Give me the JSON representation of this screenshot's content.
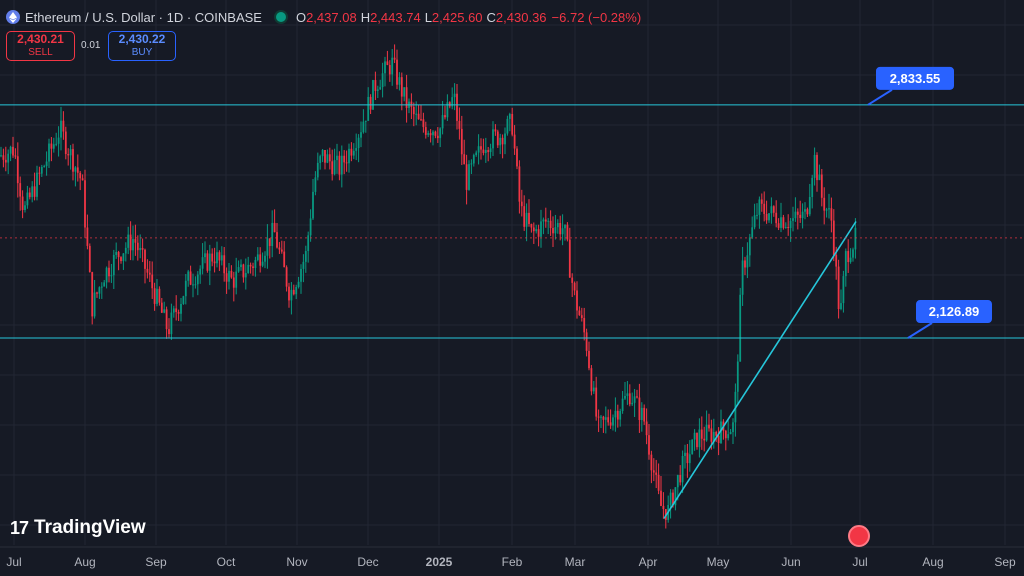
{
  "header": {
    "symbol": "Ethereum / U.S. Dollar · 1D · COINBASE",
    "ohlc": {
      "o_label": "O",
      "o": "2,437.08",
      "h_label": "H",
      "h": "2,443.74",
      "l_label": "L",
      "l": "2,425.60",
      "c_label": "C",
      "c": "2,430.36",
      "change": "−6.72 (−0.28%)"
    }
  },
  "trade": {
    "sell_price": "2,430.21",
    "sell_label": "SELL",
    "spread": "0.01",
    "buy_price": "2,430.22",
    "buy_label": "BUY"
  },
  "brand": "TradingView",
  "colors": {
    "up": "#089981",
    "down": "#f23645",
    "level_line": "#26c6da",
    "label_bg": "#2962ff",
    "background": "#161a25"
  },
  "chart_data": {
    "type": "candlestick",
    "x_ticks": [
      "Jul",
      "Aug",
      "Sep",
      "Oct",
      "Nov",
      "Dec",
      "2025",
      "Feb",
      "Mar",
      "Apr",
      "May",
      "Jun",
      "Jul",
      "Aug",
      "Sep"
    ],
    "horizontal_levels": [
      {
        "value": "2,833.55"
      },
      {
        "value": "2,126.89"
      }
    ],
    "price_path": [
      [
        0,
        2680
      ],
      [
        14,
        2700
      ],
      [
        24,
        2510
      ],
      [
        44,
        2650
      ],
      [
        60,
        2760
      ],
      [
        82,
        2600
      ],
      [
        92,
        2220
      ],
      [
        104,
        2320
      ],
      [
        118,
        2380
      ],
      [
        134,
        2430
      ],
      [
        150,
        2300
      ],
      [
        168,
        2150
      ],
      [
        188,
        2300
      ],
      [
        214,
        2380
      ],
      [
        232,
        2300
      ],
      [
        256,
        2360
      ],
      [
        274,
        2450
      ],
      [
        290,
        2260
      ],
      [
        306,
        2380
      ],
      [
        314,
        2600
      ],
      [
        322,
        2680
      ],
      [
        340,
        2640
      ],
      [
        360,
        2760
      ],
      [
        376,
        2900
      ],
      [
        392,
        2960
      ],
      [
        406,
        2840
      ],
      [
        420,
        2770
      ],
      [
        440,
        2760
      ],
      [
        454,
        2860
      ],
      [
        466,
        2600
      ],
      [
        484,
        2720
      ],
      [
        500,
        2740
      ],
      [
        512,
        2780
      ],
      [
        520,
        2520
      ],
      [
        532,
        2440
      ],
      [
        546,
        2480
      ],
      [
        564,
        2460
      ],
      [
        574,
        2260
      ],
      [
        586,
        2120
      ],
      [
        598,
        1850
      ],
      [
        614,
        1900
      ],
      [
        630,
        1960
      ],
      [
        644,
        1880
      ],
      [
        660,
        1620
      ],
      [
        668,
        1600
      ],
      [
        680,
        1720
      ],
      [
        698,
        1830
      ],
      [
        716,
        1840
      ],
      [
        734,
        1860
      ],
      [
        742,
        2330
      ],
      [
        758,
        2520
      ],
      [
        774,
        2500
      ],
      [
        790,
        2480
      ],
      [
        806,
        2500
      ],
      [
        814,
        2680
      ],
      [
        822,
        2550
      ],
      [
        832,
        2480
      ],
      [
        840,
        2180
      ],
      [
        846,
        2380
      ],
      [
        856,
        2430
      ]
    ],
    "trendline": [
      [
        664,
        1580
      ],
      [
        856,
        2480
      ]
    ],
    "ylim": [
      1530,
      3030
    ]
  }
}
